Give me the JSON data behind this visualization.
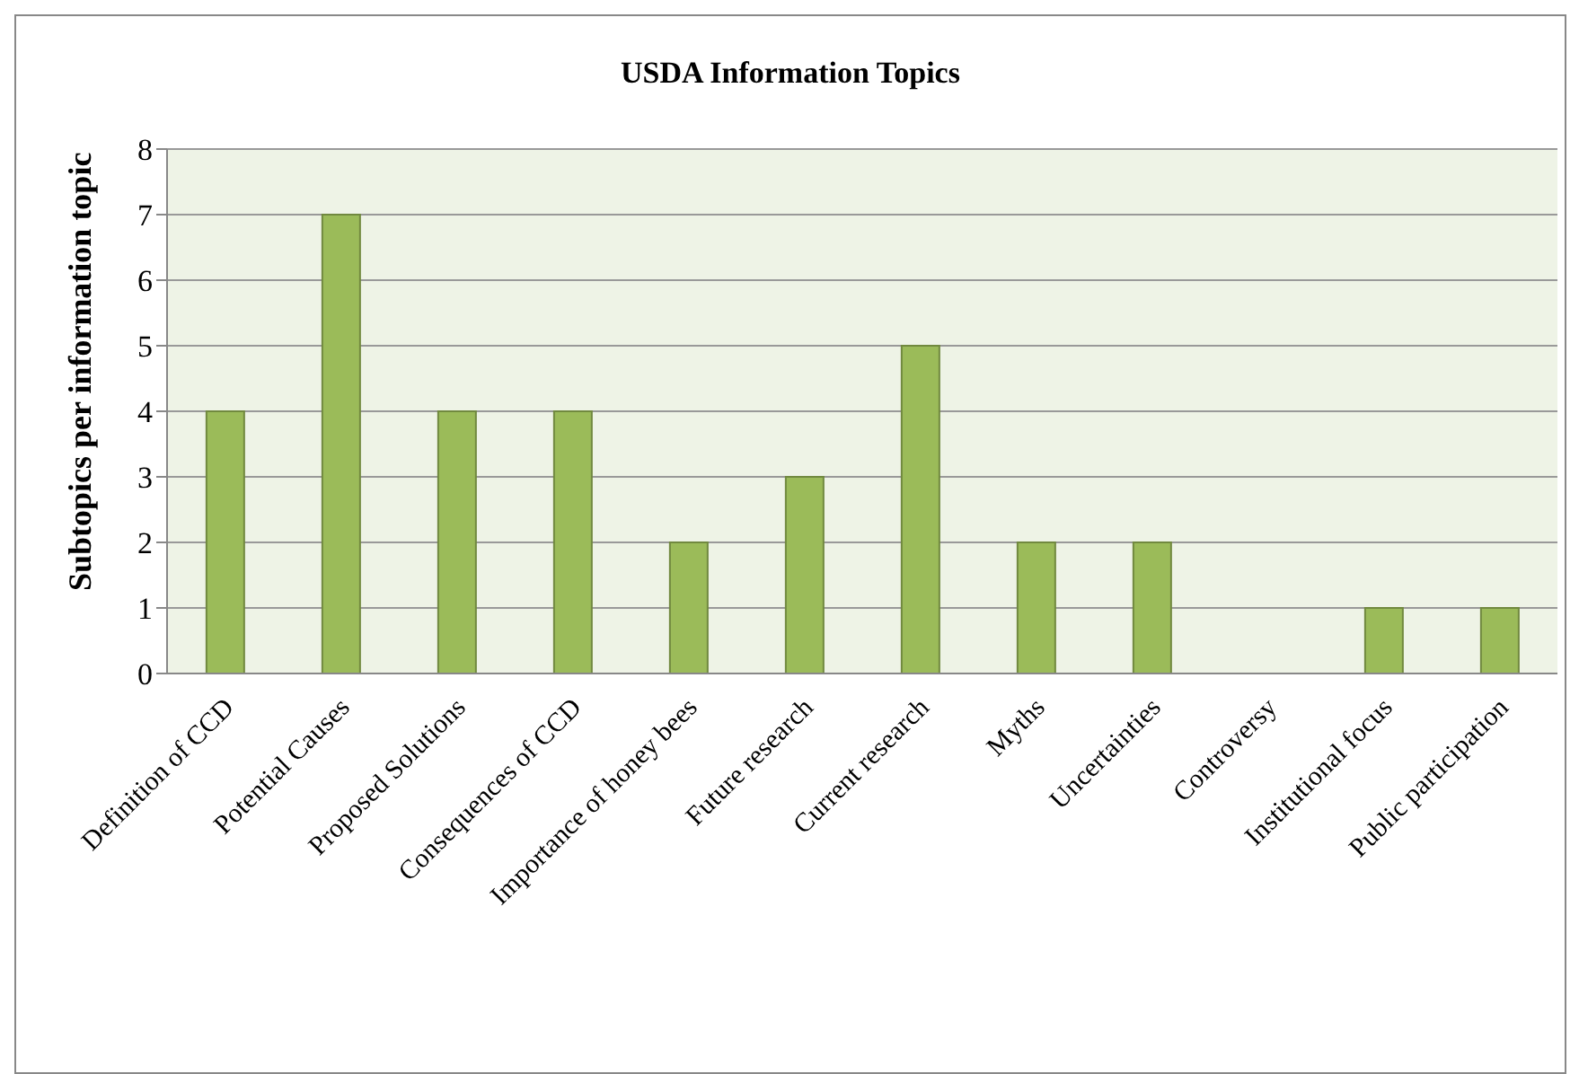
{
  "chart_data": {
    "type": "bar",
    "title": "USDA Information Topics",
    "ylabel": "Subtopics per information topic",
    "categories": [
      "Definition of CCD",
      "Potential Causes",
      "Proposed Solutions",
      "Consequences of CCD",
      "Importance of honey bees",
      "Future research",
      "Current research",
      "Myths",
      "Uncertainties",
      "Controversy",
      "Institutional focus",
      "Public participation"
    ],
    "series": [
      {
        "color": "#9bbb59",
        "values": [
          4,
          7,
          4,
          4,
          2,
          3,
          5,
          2,
          2,
          0,
          1,
          1
        ]
      }
    ],
    "ylim": [
      0,
      8
    ],
    "yticks": [
      0,
      1,
      2,
      3,
      4,
      5,
      6,
      7,
      8
    ],
    "grid": "y"
  }
}
